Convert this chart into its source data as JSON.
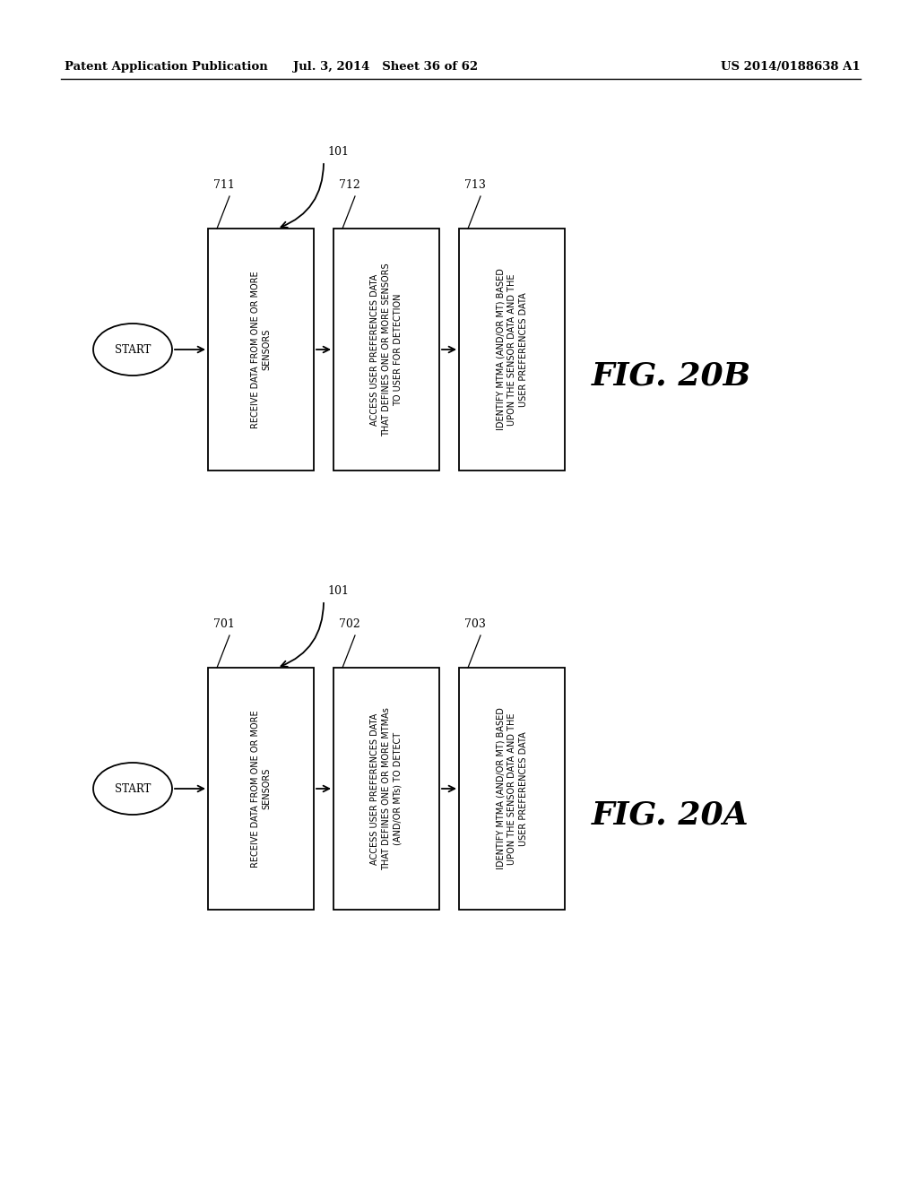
{
  "header_left": "Patent Application Publication",
  "header_mid": "Jul. 3, 2014   Sheet 36 of 62",
  "header_right": "US 2014/0188638 A1",
  "fig_top": {
    "label": "FIG. 20B",
    "ref_main": "101",
    "start_label": "START",
    "boxes": [
      {
        "id": "711",
        "text": "RECEIVE DATA FROM ONE OR MORE\nSENSORS"
      },
      {
        "id": "712",
        "text": "ACCESS USER PREFERENCES DATA\nTHAT DEFINES ONE OR MORE SENSORS\nTO USER FOR DETECTION"
      },
      {
        "id": "713",
        "text": "IDENTIFY MTMA (AND/OR MT) BASED\nUPON THE SENSOR DATA AND THE\nUSER PREFERENCES DATA"
      }
    ]
  },
  "fig_bottom": {
    "label": "FIG. 20A",
    "ref_main": "101",
    "start_label": "START",
    "boxes": [
      {
        "id": "701",
        "text": "RECEIVE DATA FROM ONE OR MORE\nSENSORS"
      },
      {
        "id": "702",
        "text": "ACCESS USER PREFERENCES DATA\nTHAT DEFINES ONE OR MORE MTMAs\n(AND/OR MTs) TO DETECT"
      },
      {
        "id": "703",
        "text": "IDENTIFY MTMA (AND/OR MT) BASED\nUPON THE SENSOR DATA AND THE\nUSER PREFERENCES DATA"
      }
    ]
  },
  "bg_color": "#ffffff",
  "line_color": "#000000",
  "text_color": "#000000"
}
